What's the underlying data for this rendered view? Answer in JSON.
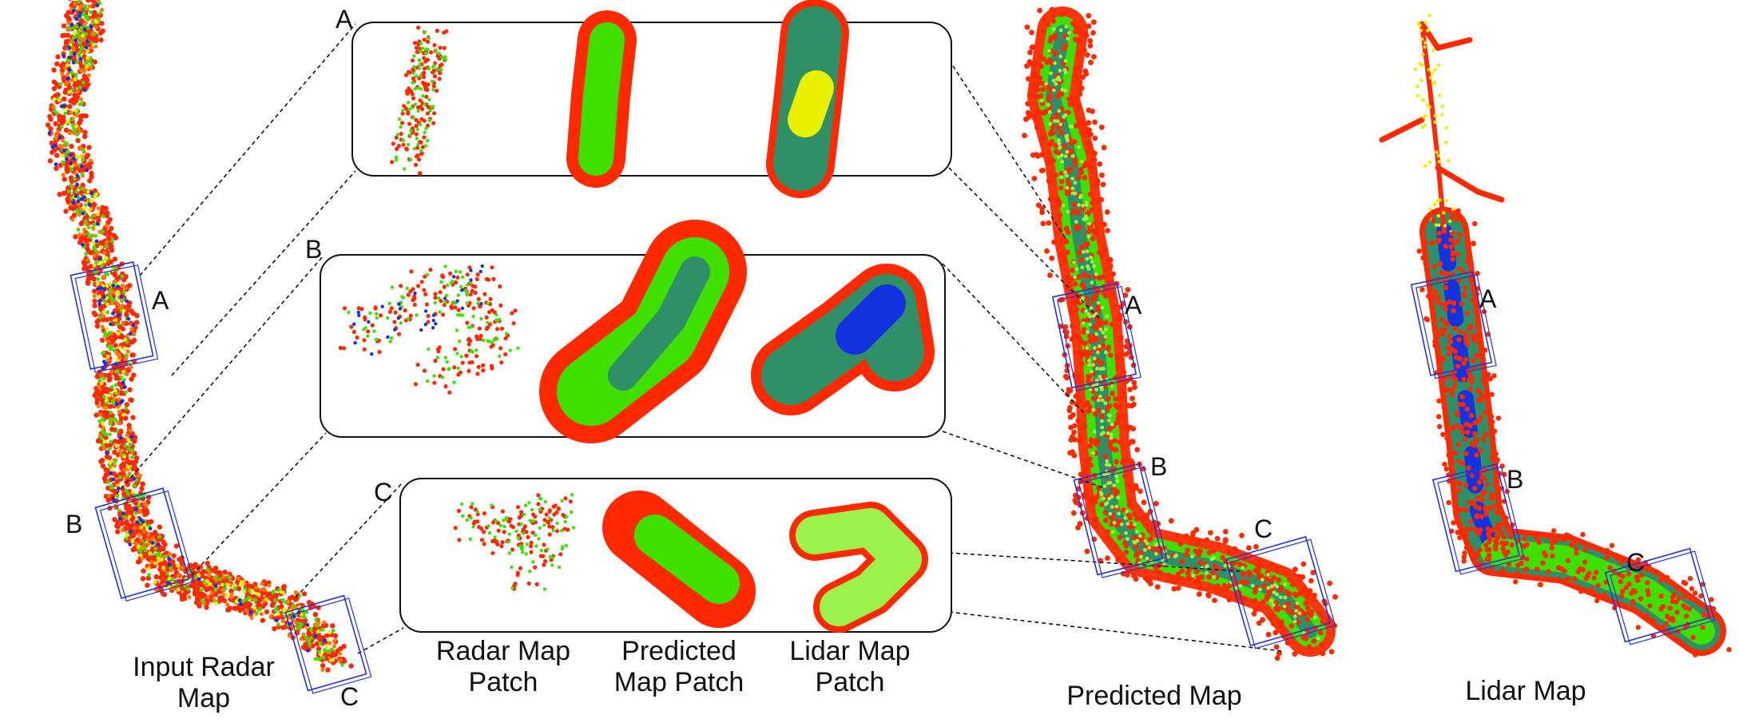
{
  "labels": {
    "input_radar_map": [
      "Input Radar",
      "Map"
    ],
    "radar_patch": [
      "Radar Map",
      "Patch"
    ],
    "predicted_patch": [
      "Predicted",
      "Map Patch"
    ],
    "lidar_patch": [
      "Lidar Map",
      "Patch"
    ],
    "predicted_map": "Predicted Map",
    "lidar_map": "Lidar Map"
  },
  "regions": [
    "A",
    "B",
    "C"
  ],
  "colors": {
    "red": "#ff2a00",
    "orange": "#ff7b00",
    "yellow": "#e8f000",
    "green": "#3fe000",
    "light_green": "#9cf24a",
    "teal": "#2f8f66",
    "blue": "#1432e0",
    "box_blue": "#2233dd",
    "line": "#111111"
  }
}
